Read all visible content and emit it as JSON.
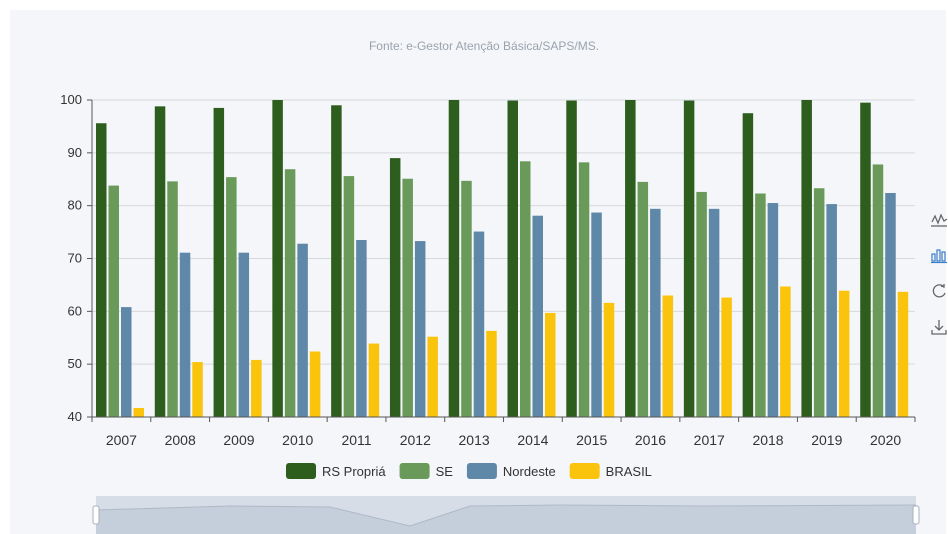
{
  "source_note": "Fonte: e-Gestor Atenção Básica/SAPS/MS.",
  "colors": {
    "series": [
      "#2d5e1e",
      "#6a9a5a",
      "#5f87a8",
      "#fbc40c"
    ],
    "grid": "#d6d9dd",
    "axis": "#555555",
    "tool_active": "#3d7ec9",
    "tool_idle": "#666666"
  },
  "toolbox": {
    "items": [
      {
        "name": "line-chart-icon",
        "active": false
      },
      {
        "name": "bar-chart-icon",
        "active": true
      },
      {
        "name": "restore-icon",
        "active": false
      },
      {
        "name": "download-icon",
        "active": false
      }
    ]
  },
  "chart_data": {
    "type": "bar",
    "title": "",
    "xlabel": "",
    "ylabel": "",
    "ylim": [
      40,
      100
    ],
    "yticks": [
      40,
      50,
      60,
      70,
      80,
      90,
      100
    ],
    "grid": true,
    "legend_position": "bottom-center",
    "categories": [
      "2007",
      "2008",
      "2009",
      "2010",
      "2011",
      "2012",
      "2013",
      "2014",
      "2015",
      "2016",
      "2017",
      "2018",
      "2019",
      "2020"
    ],
    "series": [
      {
        "name": "RS Propriá",
        "values": [
          95.6,
          98.8,
          98.5,
          100,
          99.0,
          89.0,
          100,
          99.9,
          99.9,
          100,
          99.9,
          97.5,
          100,
          99.5
        ]
      },
      {
        "name": "SE",
        "values": [
          83.8,
          84.6,
          85.4,
          86.9,
          85.6,
          85.1,
          84.7,
          88.4,
          88.2,
          84.5,
          82.6,
          82.3,
          83.3,
          87.8
        ]
      },
      {
        "name": "Nordeste",
        "values": [
          60.8,
          71.1,
          71.1,
          72.8,
          73.5,
          73.3,
          75.1,
          78.1,
          78.7,
          79.4,
          79.4,
          80.5,
          80.3,
          82.4
        ]
      },
      {
        "name": "BRASIL",
        "values": [
          41.7,
          50.4,
          50.8,
          52.4,
          53.9,
          55.2,
          56.3,
          59.7,
          61.6,
          63.0,
          62.6,
          64.7,
          63.9,
          63.7
        ]
      }
    ]
  }
}
